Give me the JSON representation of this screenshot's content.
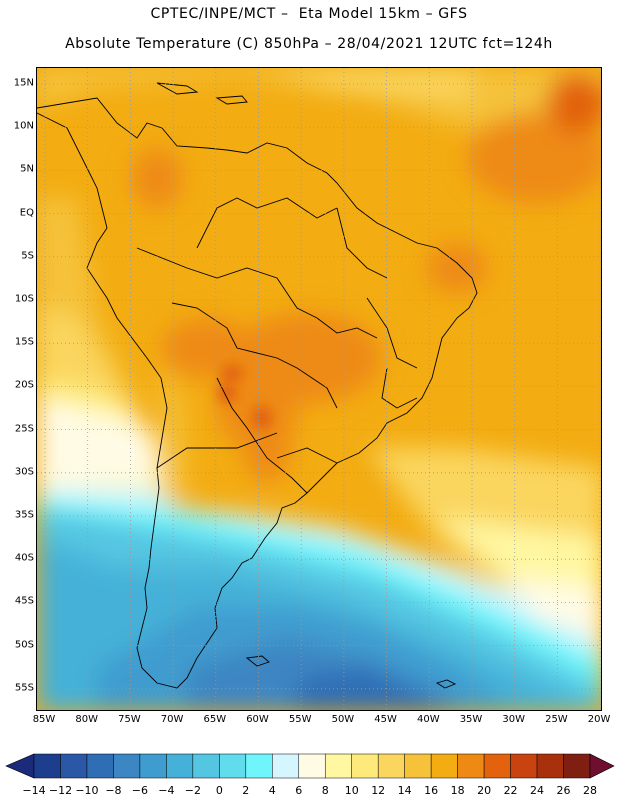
{
  "header": {
    "line1": "CPTEC/INPE/MCT –  Eta Model 15km – GFS",
    "line2": "Absolute Temperature (C) 850hPa – 28/04/2021 12UTC fct=124h"
  },
  "map": {
    "lat_ticks": [
      "15N",
      "10N",
      "5N",
      "EQ",
      "5S",
      "10S",
      "15S",
      "20S",
      "25S",
      "30S",
      "35S",
      "40S",
      "45S",
      "50S",
      "55S"
    ],
    "lon_ticks": [
      "85W",
      "80W",
      "75W",
      "70W",
      "65W",
      "60W",
      "55W",
      "50W",
      "45W",
      "40W",
      "35W",
      "30W",
      "25W",
      "20W"
    ]
  },
  "colorbar": {
    "labels": [
      "-14",
      "-12",
      "-10",
      "-8",
      "-6",
      "-4",
      "-2",
      "0",
      "2",
      "4",
      "6",
      "8",
      "10",
      "12",
      "14",
      "16",
      "18",
      "20",
      "22",
      "24",
      "26",
      "28"
    ],
    "colors": [
      "#1d3e8c",
      "#2a58a6",
      "#2f6db5",
      "#3c86c3",
      "#3f9ccf",
      "#45b1d8",
      "#55c6e2",
      "#60dcec",
      "#6ff5fb",
      "#d6f6ff",
      "#fffbe5",
      "#fff7a2",
      "#fdea7a",
      "#fad65f",
      "#f5c23a",
      "#f3ac12",
      "#ee8a14",
      "#e2620e",
      "#c94311",
      "#a8300d",
      "#7f1f12"
    ],
    "under_color": "#1b2a7a",
    "over_color": "#6e0f30"
  }
}
